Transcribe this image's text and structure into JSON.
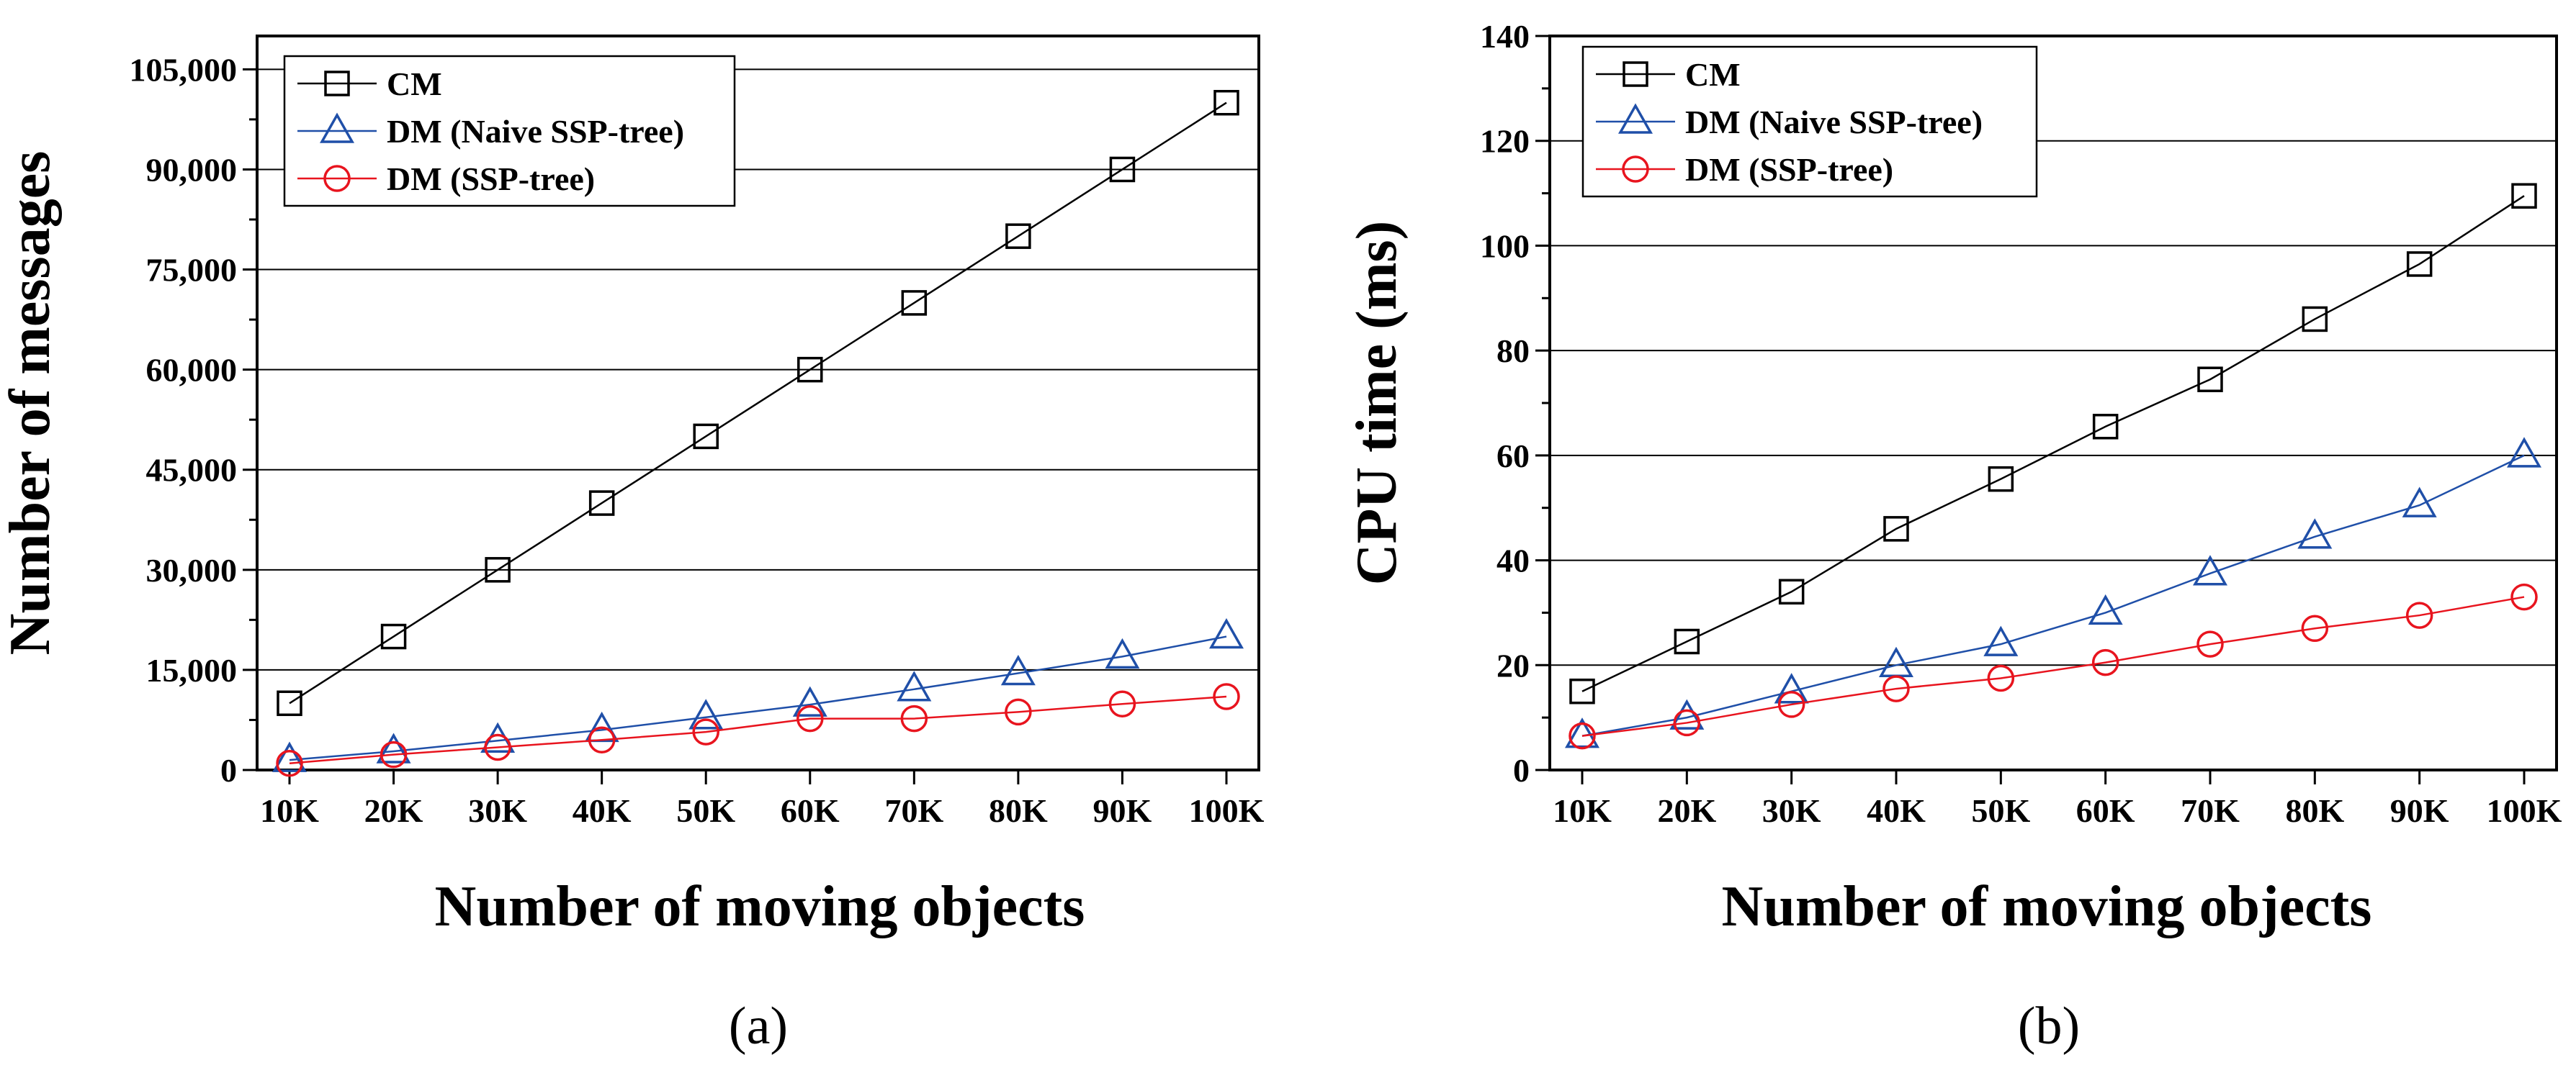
{
  "chart_data": [
    {
      "type": "line",
      "caption": "(a)",
      "xlabel": "Number of moving objects",
      "ylabel": "Number of messages",
      "categories": [
        "10K",
        "20K",
        "30K",
        "40K",
        "50K",
        "60K",
        "70K",
        "80K",
        "90K",
        "100K"
      ],
      "ylim": [
        0,
        110000
      ],
      "yticks": [
        0,
        15000,
        30000,
        45000,
        60000,
        75000,
        90000,
        105000
      ],
      "ytick_labels": [
        "0",
        "15,000",
        "30,000",
        "45,000",
        "60,000",
        "75,000",
        "90,000",
        "105,000"
      ],
      "grid": "horizontal",
      "legend_position": "top-left",
      "series": [
        {
          "name": "CM",
          "color": "#000000",
          "marker": "square",
          "values": [
            10000,
            20000,
            30000,
            40000,
            50000,
            60000,
            70000,
            80000,
            90000,
            100000
          ]
        },
        {
          "name": "DM (Naive SSP-tree)",
          "color": "#1f4fa8",
          "marker": "triangle",
          "values": [
            1500,
            2800,
            4400,
            6000,
            7900,
            9800,
            12100,
            14500,
            17000,
            20000
          ]
        },
        {
          "name": "DM (SSP-tree)",
          "color": "#e8141e",
          "marker": "circle",
          "values": [
            1000,
            2300,
            3400,
            4500,
            5700,
            7700,
            7700,
            8700,
            9900,
            11000
          ]
        }
      ]
    },
    {
      "type": "line",
      "caption": "(b)",
      "xlabel": "Number of moving objects",
      "ylabel": "CPU time (ms)",
      "categories": [
        "10K",
        "20K",
        "30K",
        "40K",
        "50K",
        "60K",
        "70K",
        "80K",
        "90K",
        "100K"
      ],
      "ylim": [
        0,
        140
      ],
      "yticks": [
        0,
        20,
        40,
        60,
        80,
        100,
        120,
        140
      ],
      "ytick_labels": [
        "0",
        "20",
        "40",
        "60",
        "80",
        "100",
        "120",
        "140"
      ],
      "grid": "horizontal",
      "legend_position": "top-left",
      "series": [
        {
          "name": "CM",
          "color": "#000000",
          "marker": "square",
          "values": [
            15,
            24.5,
            34,
            46,
            55.5,
            65.5,
            74.5,
            86,
            96.5,
            109.5
          ]
        },
        {
          "name": "DM (Naive SSP-tree)",
          "color": "#1f4fa8",
          "marker": "triangle",
          "values": [
            6.5,
            10,
            15,
            20,
            24,
            30,
            37.5,
            44.5,
            50.5,
            60
          ]
        },
        {
          "name": "DM (SSP-tree)",
          "color": "#e8141e",
          "marker": "circle",
          "values": [
            6.5,
            9,
            12.5,
            15.5,
            17.5,
            20.5,
            24,
            27,
            29.5,
            33
          ]
        }
      ]
    }
  ]
}
